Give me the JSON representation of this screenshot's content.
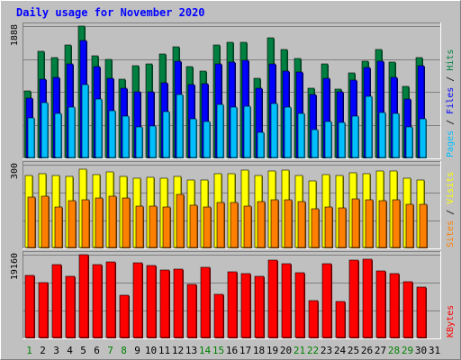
{
  "chart_data": {
    "type": "bar",
    "title": "Daily usage for November 2020",
    "categories": [
      "1",
      "2",
      "3",
      "4",
      "5",
      "6",
      "7",
      "8",
      "9",
      "10",
      "11",
      "12",
      "13",
      "14",
      "15",
      "16",
      "17",
      "18",
      "19",
      "20",
      "21",
      "22",
      "23",
      "24",
      "25",
      "26",
      "27",
      "28",
      "29",
      "30",
      "31"
    ],
    "weekend_days": [
      "1",
      "7",
      "8",
      "14",
      "15",
      "21",
      "22",
      "28",
      "29"
    ],
    "panels": [
      {
        "id": "top",
        "ymax": 1888,
        "ytick_label": "1888",
        "ylabel_parts": [
          "Pages",
          "Files",
          "Hits"
        ],
        "series": [
          {
            "name": "Hits",
            "color": "#008040",
            "values": [
              960,
              1520,
              1440,
              1620,
              1888,
              1460,
              1410,
              1120,
              1320,
              1350,
              1490,
              1590,
              1310,
              1240,
              1620,
              1650,
              1650,
              1140,
              1720,
              1550,
              1420,
              1000,
              1350,
              980,
              1210,
              1390,
              1550,
              1370,
              1020,
              1440,
              0
            ]
          },
          {
            "name": "Files",
            "color": "#0000ff",
            "values": [
              850,
              1130,
              1150,
              1350,
              1680,
              1300,
              1140,
              1000,
              940,
              940,
              1070,
              1390,
              1050,
              1060,
              1350,
              1370,
              1400,
              1000,
              1340,
              1240,
              1230,
              900,
              1140,
              940,
              1110,
              1290,
              1380,
              1150,
              840,
              1320,
              0
            ]
          },
          {
            "name": "Pages",
            "color": "#00bfff",
            "values": [
              570,
              790,
              640,
              730,
              1050,
              840,
              670,
              600,
              440,
              450,
              660,
              900,
              560,
              520,
              760,
              720,
              740,
              360,
              780,
              720,
              640,
              400,
              520,
              510,
              590,
              880,
              650,
              640,
              440,
              550,
              0
            ]
          }
        ]
      },
      {
        "id": "middle",
        "ymax": 300,
        "ytick_label": "300",
        "ylabel_parts": [
          "Sites",
          "Visits"
        ],
        "series": [
          {
            "name": "Visits",
            "color": "#ffff00",
            "values": [
              260,
              266,
              260,
              258,
              283,
              265,
              273,
              259,
              252,
              255,
              252,
              256,
              244,
              243,
              266,
              269,
              279,
              261,
              278,
              282,
              262,
              240,
              265,
              261,
              271,
              268,
              278,
              276,
              250,
              246,
              0
            ]
          },
          {
            "name": "Sites",
            "color": "#ff8000",
            "values": [
              182,
              186,
              146,
              170,
              174,
              180,
              186,
              178,
              149,
              150,
              146,
              192,
              152,
              148,
              162,
              163,
              150,
              165,
              172,
              174,
              165,
              140,
              148,
              142,
              176,
              174,
              169,
              173,
              157,
              155,
              0
            ]
          }
        ]
      },
      {
        "id": "bottom",
        "ymax": 19160,
        "ytick_label": "19160",
        "ylabel_parts": [
          "KBytes"
        ],
        "series": [
          {
            "name": "KBytes",
            "color": "#ff0000",
            "values": [
              14400,
              12800,
              16800,
              14200,
              19160,
              16800,
              17400,
              9700,
              17200,
              16600,
              15700,
              15900,
              12300,
              16300,
              9900,
              15100,
              14700,
              14200,
              18000,
              17100,
              15000,
              8600,
              17100,
              8400,
              17900,
              18200,
              15500,
              14700,
              13000,
              11600,
              0
            ]
          }
        ]
      }
    ]
  }
}
